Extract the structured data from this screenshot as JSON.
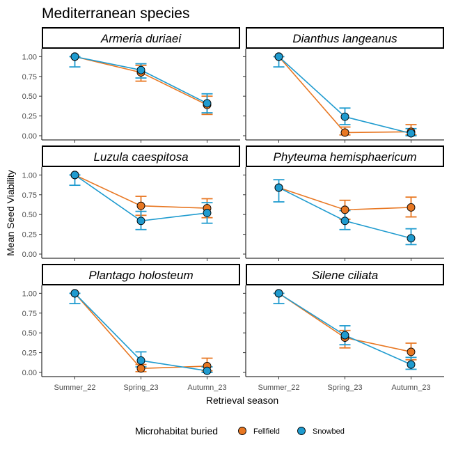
{
  "chart_data": {
    "type": "line",
    "title": "Mediterranean species",
    "xlabel": "Retrieval season",
    "ylabel": "Mean Seed Viability",
    "categories": [
      "Summer_22",
      "Spring_23",
      "Autumn_23"
    ],
    "ylim": [
      0,
      1.1
    ],
    "yticks": [
      "0.00",
      "0.25",
      "0.50",
      "0.75",
      "1.00"
    ],
    "legend": {
      "title": "Microhabitat buried",
      "position": "bottom",
      "items": [
        {
          "label": "Fellfield",
          "color": "#E87722"
        },
        {
          "label": "Snowbed",
          "color": "#1F9BCF"
        }
      ]
    },
    "panels": [
      {
        "species": "Armeria duriaei",
        "series": [
          {
            "name": "Fellfield",
            "values": [
              1.0,
              0.8,
              0.39
            ],
            "err_low": [
              1.0,
              0.69,
              0.27
            ],
            "err_high": [
              1.0,
              0.89,
              0.5
            ]
          },
          {
            "name": "Snowbed",
            "values": [
              1.0,
              0.83,
              0.41
            ],
            "err_low": [
              0.87,
              0.73,
              0.29
            ],
            "err_high": [
              1.0,
              0.91,
              0.53
            ]
          }
        ]
      },
      {
        "species": "Dianthus langeanus",
        "series": [
          {
            "name": "Fellfield",
            "values": [
              1.0,
              0.04,
              0.05
            ],
            "err_low": [
              1.0,
              0.01,
              0.01
            ],
            "err_high": [
              1.0,
              0.11,
              0.14
            ]
          },
          {
            "name": "Snowbed",
            "values": [
              1.0,
              0.24,
              0.03
            ],
            "err_low": [
              0.87,
              0.14,
              0.0
            ],
            "err_high": [
              1.0,
              0.35,
              0.09
            ]
          }
        ]
      },
      {
        "species": "Luzula caespitosa",
        "series": [
          {
            "name": "Fellfield",
            "values": [
              1.0,
              0.61,
              0.58
            ],
            "err_low": [
              1.0,
              0.49,
              0.46
            ],
            "err_high": [
              1.0,
              0.73,
              0.7
            ]
          },
          {
            "name": "Snowbed",
            "values": [
              1.0,
              0.42,
              0.52
            ],
            "err_low": [
              0.87,
              0.31,
              0.39
            ],
            "err_high": [
              1.0,
              0.54,
              0.65
            ]
          }
        ]
      },
      {
        "species": "Phyteuma hemisphaericum",
        "series": [
          {
            "name": "Fellfield",
            "values": [
              0.84,
              0.56,
              0.59
            ],
            "err_low": [
              0.84,
              0.44,
              0.47
            ],
            "err_high": [
              0.84,
              0.68,
              0.72
            ]
          },
          {
            "name": "Snowbed",
            "values": [
              0.84,
              0.42,
              0.2
            ],
            "err_low": [
              0.66,
              0.31,
              0.12
            ],
            "err_high": [
              0.94,
              0.55,
              0.32
            ]
          }
        ]
      },
      {
        "species": "Plantago holosteum",
        "series": [
          {
            "name": "Fellfield",
            "values": [
              1.0,
              0.05,
              0.08
            ],
            "err_low": [
              1.0,
              0.01,
              0.02
            ],
            "err_high": [
              1.0,
              0.1,
              0.18
            ]
          },
          {
            "name": "Snowbed",
            "values": [
              1.0,
              0.15,
              0.02
            ],
            "err_low": [
              0.87,
              0.07,
              0.0
            ],
            "err_high": [
              1.0,
              0.26,
              0.07
            ]
          }
        ]
      },
      {
        "species": "Silene ciliata",
        "series": [
          {
            "name": "Fellfield",
            "values": [
              1.0,
              0.44,
              0.26
            ],
            "err_low": [
              1.0,
              0.31,
              0.16
            ],
            "err_high": [
              1.0,
              0.53,
              0.37
            ]
          },
          {
            "name": "Snowbed",
            "values": [
              1.0,
              0.47,
              0.1
            ],
            "err_low": [
              0.87,
              0.35,
              0.04
            ],
            "err_high": [
              1.0,
              0.59,
              0.19
            ]
          }
        ]
      }
    ]
  }
}
